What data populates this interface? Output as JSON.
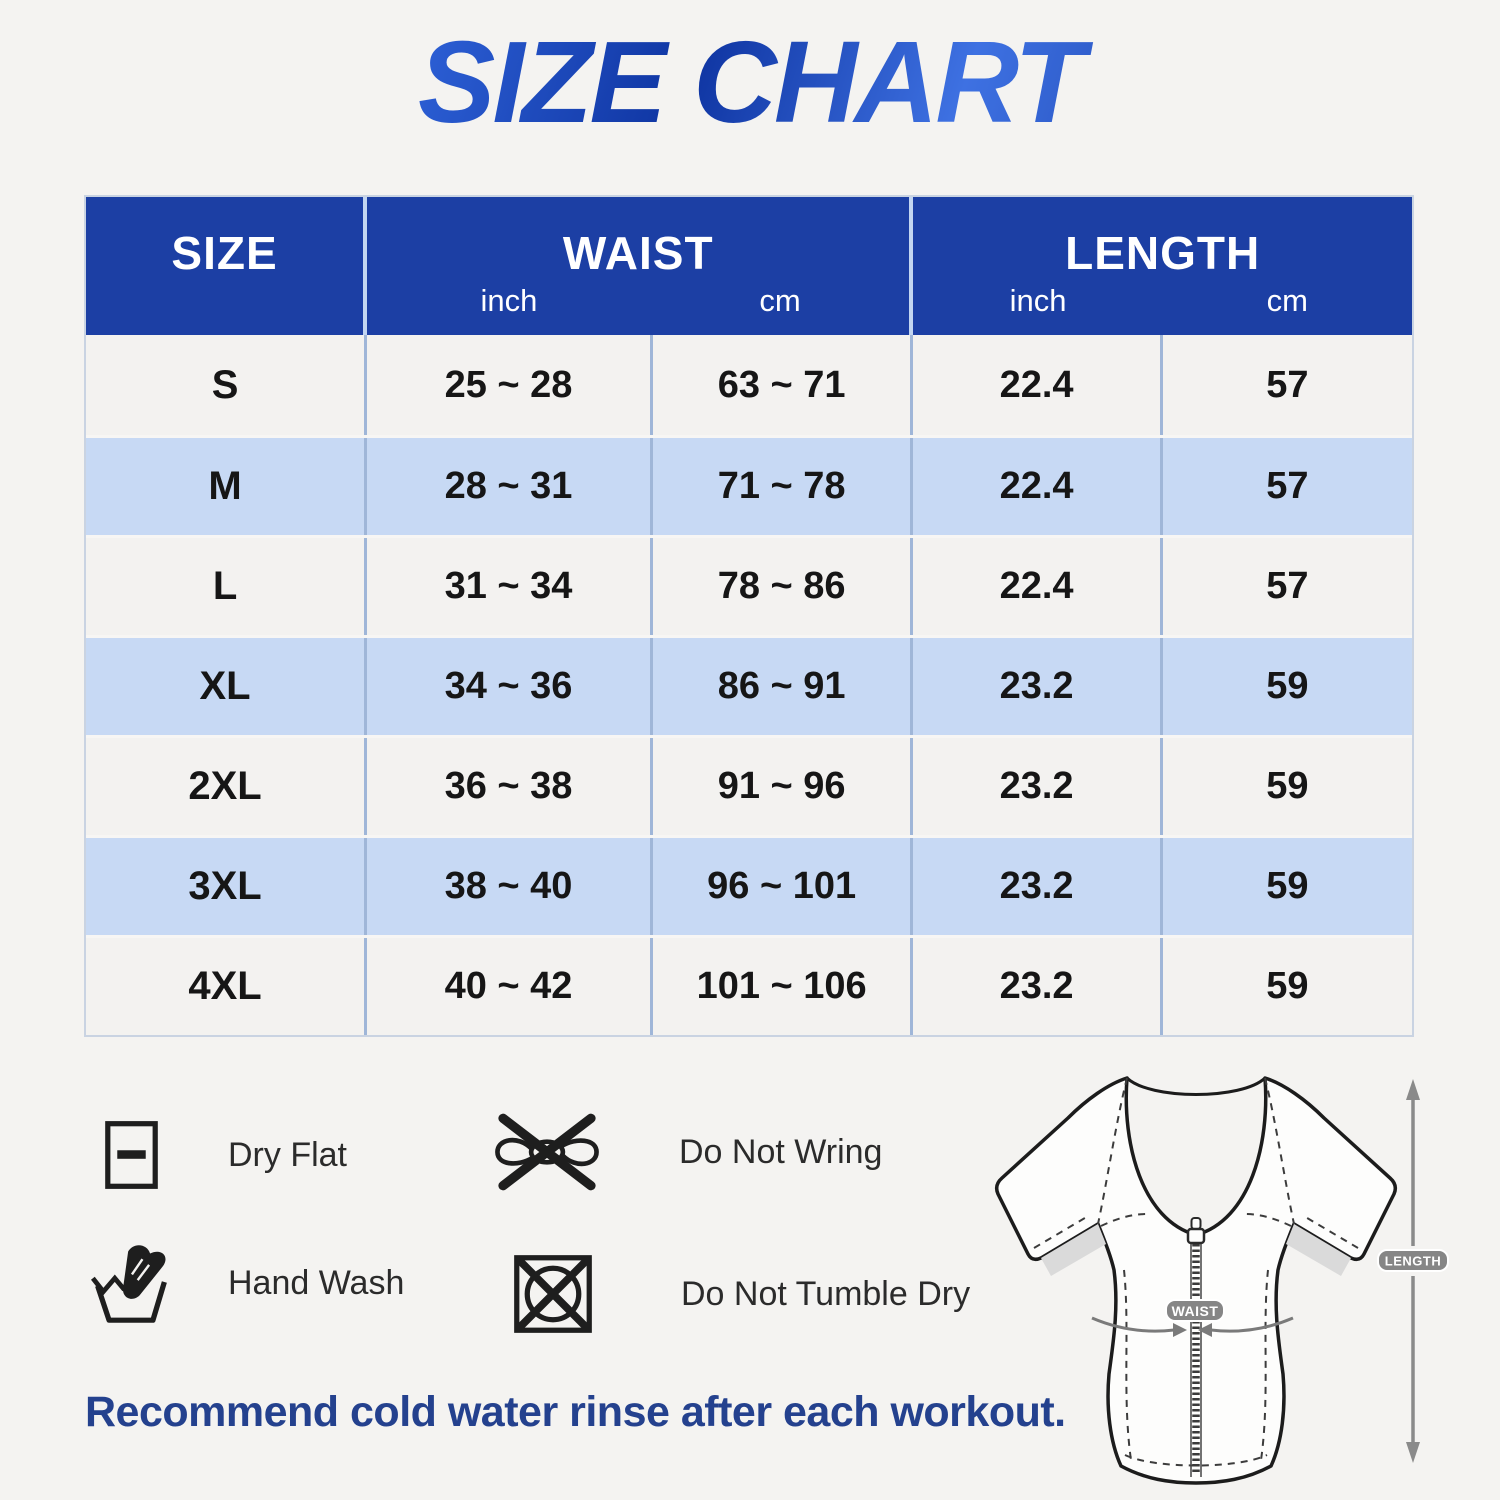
{
  "title": "SIZE CHART",
  "table": {
    "headers": {
      "size": "SIZE",
      "waist": "WAIST",
      "length": "LENGTH",
      "unit_inch": "inch",
      "unit_cm": "cm"
    },
    "rows": [
      {
        "size": "S",
        "waist_inch": "25 ~ 28",
        "waist_cm": "63 ~ 71",
        "length_inch": "22.4",
        "length_cm": "57"
      },
      {
        "size": "M",
        "waist_inch": "28 ~ 31",
        "waist_cm": "71 ~ 78",
        "length_inch": "22.4",
        "length_cm": "57"
      },
      {
        "size": "L",
        "waist_inch": "31 ~ 34",
        "waist_cm": "78 ~ 86",
        "length_inch": "22.4",
        "length_cm": "57"
      },
      {
        "size": "XL",
        "waist_inch": "34 ~ 36",
        "waist_cm": "86 ~ 91",
        "length_inch": "23.2",
        "length_cm": "59"
      },
      {
        "size": "2XL",
        "waist_inch": "36 ~ 38",
        "waist_cm": "91 ~ 96",
        "length_inch": "23.2",
        "length_cm": "59"
      },
      {
        "size": "3XL",
        "waist_inch": "38 ~ 40",
        "waist_cm": "96 ~ 101",
        "length_inch": "23.2",
        "length_cm": "59"
      },
      {
        "size": "4XL",
        "waist_inch": "40 ~ 42",
        "waist_cm": "101 ~ 106",
        "length_inch": "23.2",
        "length_cm": "59"
      }
    ]
  },
  "care": [
    {
      "icon": "dry-flat-icon",
      "label": "Dry Flat"
    },
    {
      "icon": "do-not-wring-icon",
      "label": "Do Not Wring"
    },
    {
      "icon": "hand-wash-icon",
      "label": "Hand Wash"
    },
    {
      "icon": "do-not-tumble-dry-icon",
      "label": "Do Not Tumble Dry"
    }
  ],
  "diagram": {
    "waist_label": "WAIST",
    "length_label": "LENGTH"
  },
  "footer": "Recommend cold water rinse after each workout.",
  "colors": {
    "title_blue": "#1b41b2",
    "header_blue": "#1c3fa4",
    "row_blue": "#c7d9f4",
    "row_white": "#f3f2f0",
    "divider_blue": "#9fb6d8",
    "footer_blue": "#24418e",
    "pill_grey": "#868686",
    "icon_black": "#1e1e1e"
  }
}
